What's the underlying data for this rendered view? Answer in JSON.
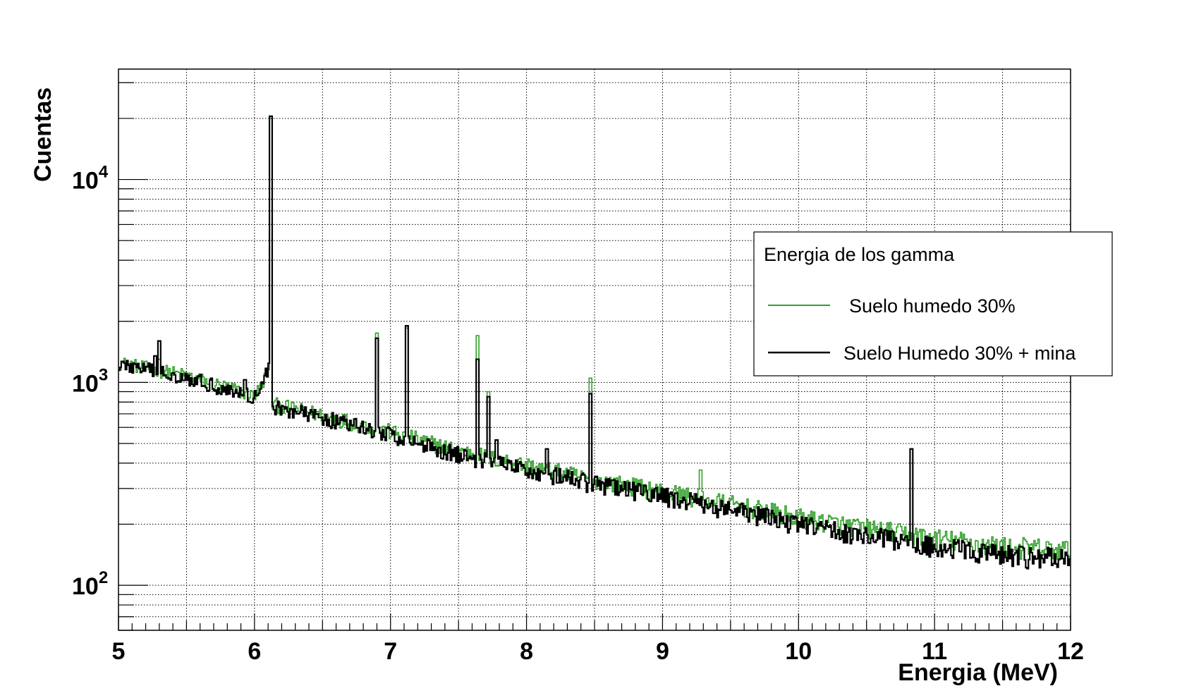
{
  "chart_data": {
    "type": "line",
    "xlabel": "Energia (MeV)",
    "ylabel": "Cuentas",
    "xlim": [
      5,
      12
    ],
    "ylim": [
      60,
      35000
    ],
    "y_scale": "log",
    "grid": true,
    "x_ticks": [
      "5",
      "6",
      "7",
      "8",
      "9",
      "10",
      "11",
      "12"
    ],
    "y_ticks": [
      {
        "base": "10",
        "exp": "2",
        "value": 100
      },
      {
        "base": "10",
        "exp": "3",
        "value": 1000
      },
      {
        "base": "10",
        "exp": "4",
        "value": 10000
      }
    ],
    "legend": {
      "title": "Energia de los gamma",
      "placement": "right",
      "entries": [
        "Suelo humedo 30%",
        "Suelo Humedo 30% + mina"
      ]
    },
    "series": [
      {
        "name": "Suelo humedo 30%",
        "color": "#33a02c",
        "baseline": [
          [
            5.0,
            1250
          ],
          [
            5.5,
            1080
          ],
          [
            5.9,
            900
          ],
          [
            6.0,
            860
          ],
          [
            6.05,
            950
          ],
          [
            6.12,
            1300
          ],
          [
            6.13,
            780
          ],
          [
            6.5,
            690
          ],
          [
            7.0,
            570
          ],
          [
            7.5,
            460
          ],
          [
            8.0,
            390
          ],
          [
            8.5,
            330
          ],
          [
            9.0,
            290
          ],
          [
            9.5,
            250
          ],
          [
            10.0,
            215
          ],
          [
            10.5,
            190
          ],
          [
            11.0,
            170
          ],
          [
            11.5,
            155
          ],
          [
            12.0,
            148
          ]
        ],
        "peaks": [
          [
            5.3,
            1300
          ],
          [
            6.12,
            20000
          ],
          [
            6.9,
            1750
          ],
          [
            7.12,
            1850
          ],
          [
            7.64,
            1700
          ],
          [
            7.72,
            900
          ],
          [
            8.47,
            1050
          ],
          [
            9.28,
            370
          ]
        ]
      },
      {
        "name": "Suelo Humedo 30% + mina",
        "color": "#000000",
        "baseline": [
          [
            5.0,
            1230
          ],
          [
            5.5,
            1060
          ],
          [
            5.9,
            880
          ],
          [
            6.0,
            850
          ],
          [
            6.05,
            930
          ],
          [
            6.12,
            1280
          ],
          [
            6.13,
            760
          ],
          [
            6.5,
            670
          ],
          [
            7.0,
            550
          ],
          [
            7.5,
            440
          ],
          [
            8.0,
            370
          ],
          [
            8.5,
            315
          ],
          [
            9.0,
            275
          ],
          [
            9.5,
            235
          ],
          [
            10.0,
            200
          ],
          [
            10.5,
            175
          ],
          [
            11.0,
            155
          ],
          [
            11.5,
            140
          ],
          [
            12.0,
            135
          ]
        ],
        "peaks": [
          [
            5.3,
            1600
          ],
          [
            5.27,
            1350
          ],
          [
            5.93,
            1030
          ],
          [
            6.12,
            20500
          ],
          [
            6.9,
            1650
          ],
          [
            7.12,
            1900
          ],
          [
            7.64,
            1300
          ],
          [
            7.72,
            850
          ],
          [
            7.78,
            520
          ],
          [
            8.15,
            470
          ],
          [
            8.47,
            880
          ],
          [
            10.83,
            470
          ]
        ]
      }
    ]
  }
}
